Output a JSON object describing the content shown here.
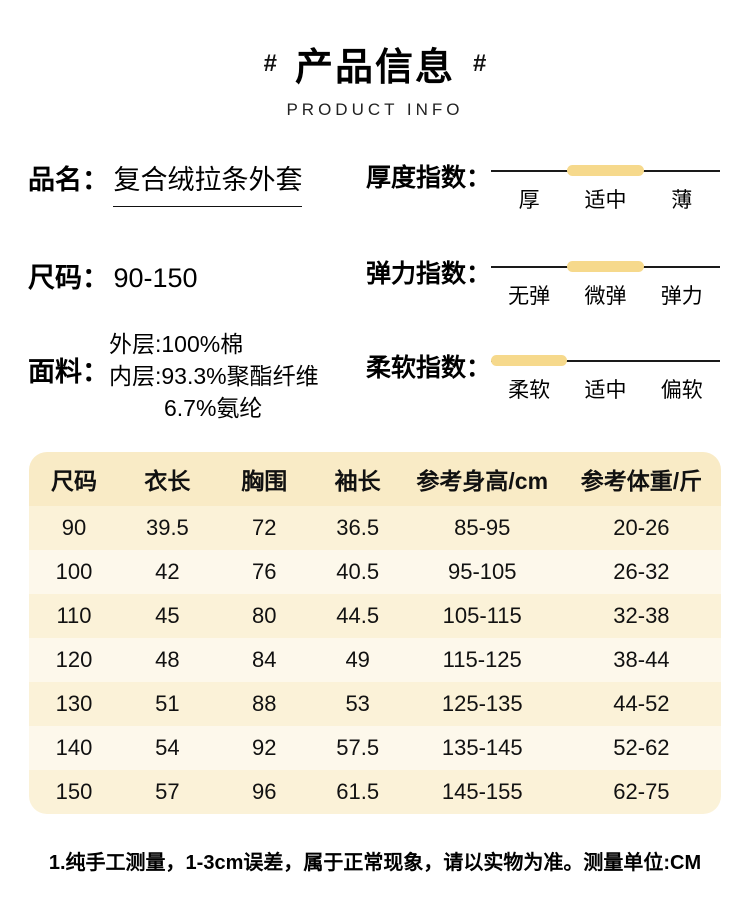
{
  "header": {
    "hash_left": "#",
    "title": "产品信息",
    "hash_right": "#",
    "subtitle": "PRODUCT INFO"
  },
  "info": {
    "name_label": "品名：",
    "name_value": "复合绒拉条外套",
    "size_label": "尺码：",
    "size_value": "90-150",
    "fabric_label": "面料：",
    "fabric_lines": [
      "外层:100%棉",
      "内层:93.3%聚酯纤维",
      "6.7%氨纶"
    ]
  },
  "indexes": [
    {
      "label": "厚度指数：",
      "options": [
        "厚",
        "适中",
        "薄"
      ],
      "active": 1
    },
    {
      "label": "弹力指数：",
      "options": [
        "无弹",
        "微弹",
        "弹力"
      ],
      "active": 1
    },
    {
      "label": "柔软指数：",
      "options": [
        "柔软",
        "适中",
        "偏软"
      ],
      "active": 0
    }
  ],
  "table": {
    "headers": [
      "尺码",
      "衣长",
      "胸围",
      "袖长",
      "参考身高/cm",
      "参考体重/斤"
    ],
    "rows": [
      [
        "90",
        "39.5",
        "72",
        "36.5",
        "85-95",
        "20-26"
      ],
      [
        "100",
        "42",
        "76",
        "40.5",
        "95-105",
        "26-32"
      ],
      [
        "110",
        "45",
        "80",
        "44.5",
        "105-115",
        "32-38"
      ],
      [
        "120",
        "48",
        "84",
        "49",
        "115-125",
        "38-44"
      ],
      [
        "130",
        "51",
        "88",
        "53",
        "125-135",
        "44-52"
      ],
      [
        "140",
        "54",
        "92",
        "57.5",
        "135-145",
        "52-62"
      ],
      [
        "150",
        "57",
        "96",
        "61.5",
        "145-155",
        "62-75"
      ]
    ]
  },
  "footer": {
    "note": "1.纯手工测量，1-3cm误差，属于正常现象，请以实物为准。测量单位:CM"
  },
  "colors": {
    "accent": "#F6D98C",
    "table_header_bg": "#F9EBC6",
    "row_odd": "#FBF2D8",
    "row_even": "#FDF8EB"
  }
}
